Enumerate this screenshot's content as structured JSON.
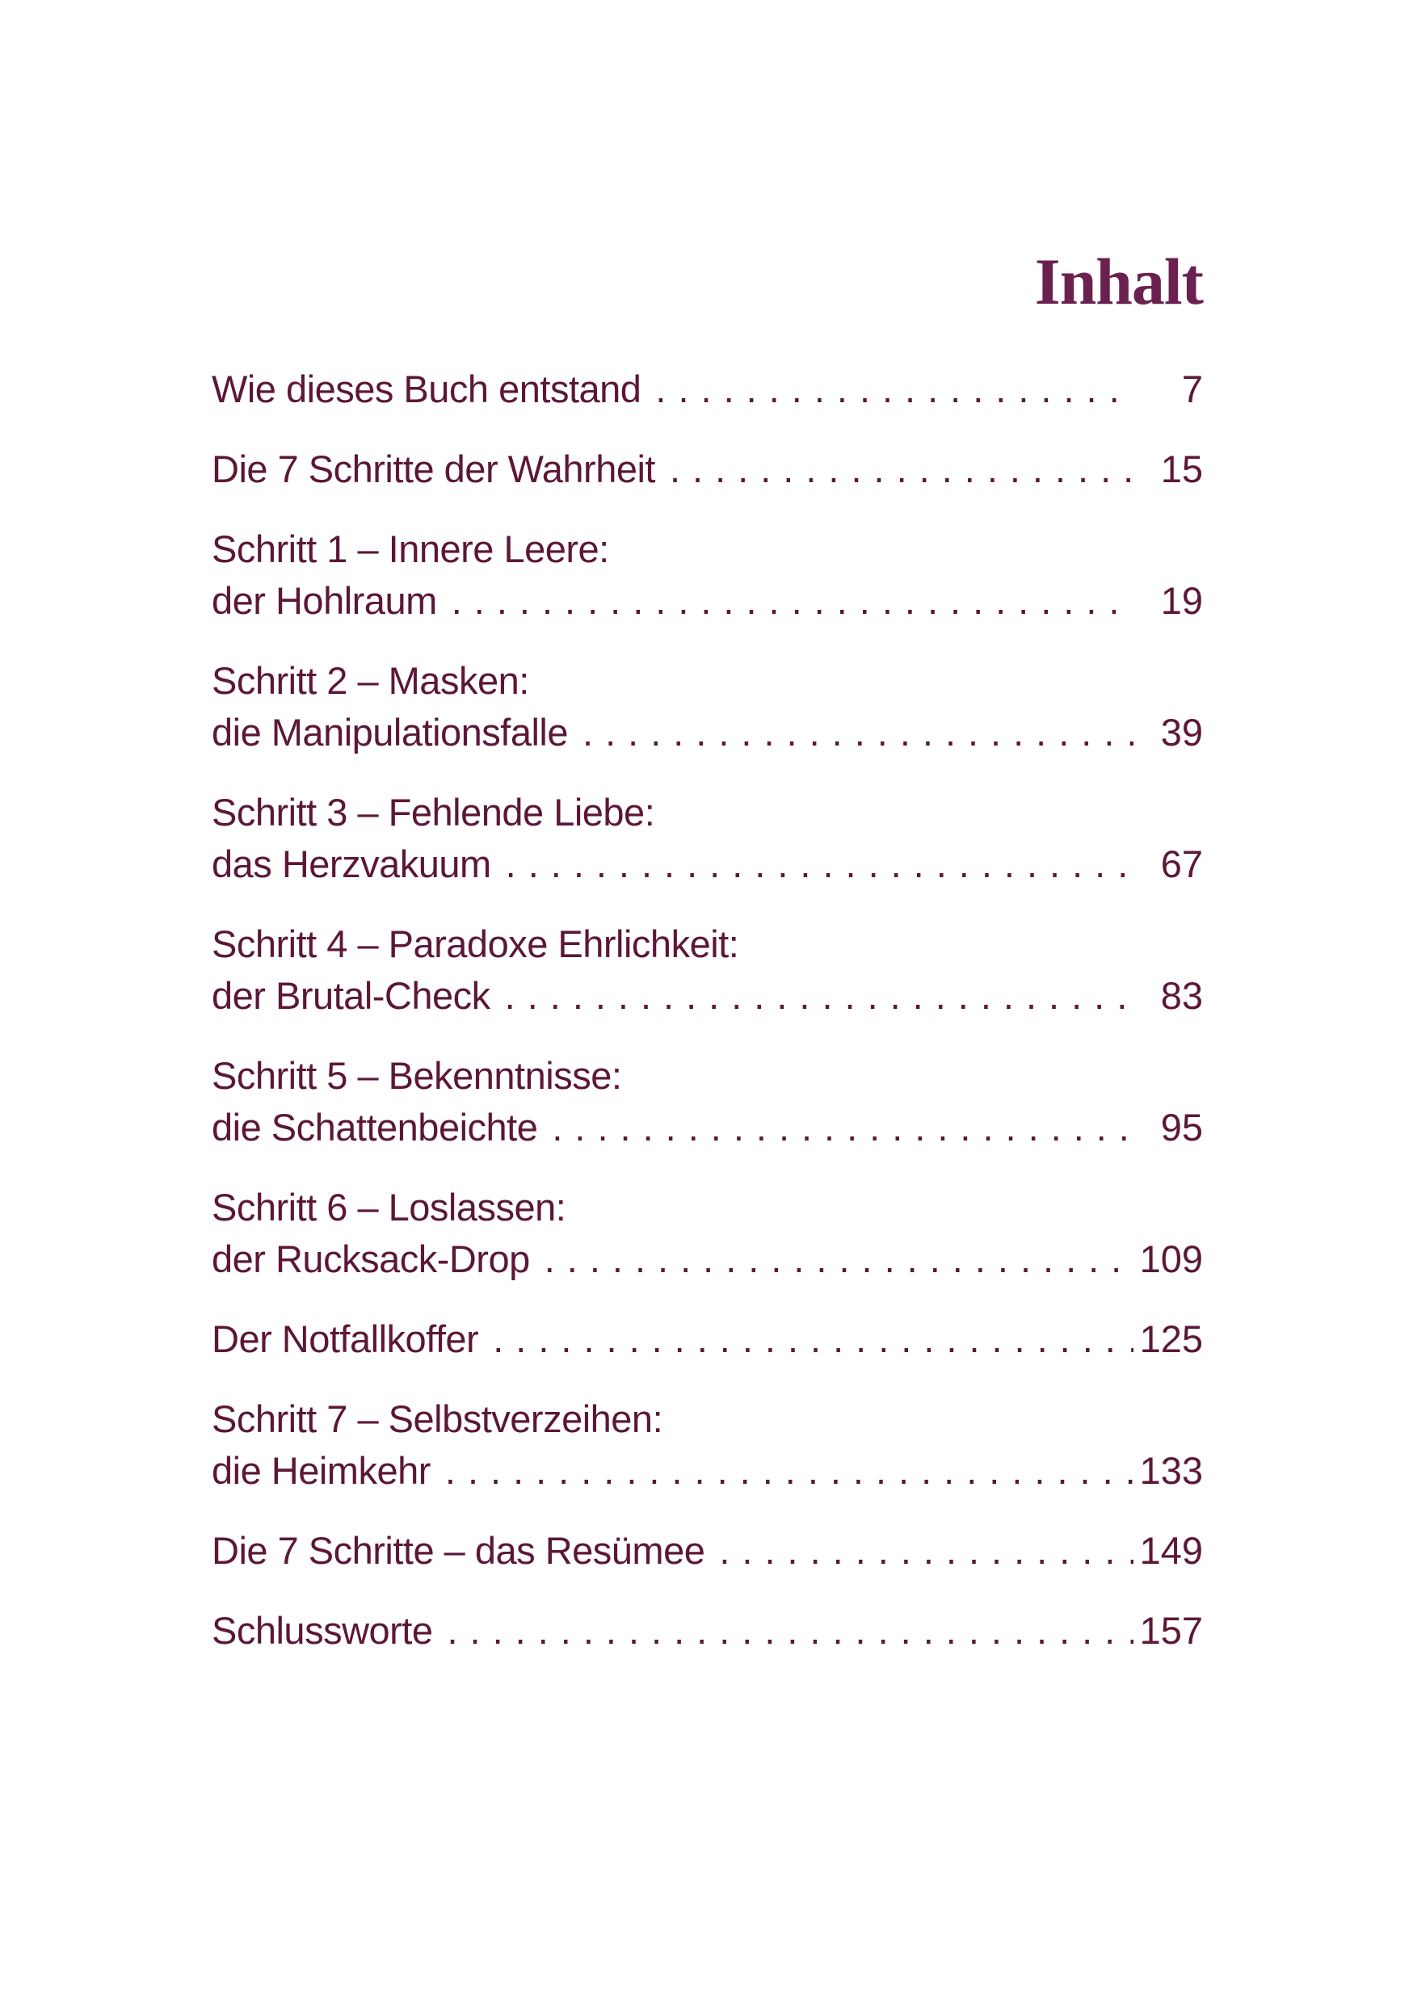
{
  "page": {
    "title": "Inhalt",
    "colors": {
      "background": "#FFFFFF",
      "title": "#6B2150",
      "text": "#5C1738"
    },
    "leader_dot": ".",
    "toc": {
      "entries": [
        {
          "heading": null,
          "label": "Wie dieses Buch entstand",
          "page": "7"
        },
        {
          "heading": null,
          "label": "Die 7 Schritte der Wahrheit",
          "page": "15"
        },
        {
          "heading": "Schritt 1 – Innere Leere:",
          "label": "der Hohlraum",
          "page": "19"
        },
        {
          "heading": "Schritt 2 – Masken:",
          "label": "die Manipulationsfalle",
          "page": "39"
        },
        {
          "heading": "Schritt 3 – Fehlende Liebe:",
          "label": "das Herzvakuum",
          "page": "67"
        },
        {
          "heading": "Schritt 4 – Paradoxe Ehrlichkeit:",
          "label": "der Brutal-Check",
          "page": "83"
        },
        {
          "heading": "Schritt 5 – Bekenntnisse:",
          "label": "die Schattenbeichte",
          "page": "95"
        },
        {
          "heading": "Schritt 6 – Loslassen:",
          "label": "der Rucksack-Drop",
          "page": "109"
        },
        {
          "heading": null,
          "label": "Der Notfallkoffer",
          "page": "125"
        },
        {
          "heading": "Schritt 7 – Selbstverzeihen:",
          "label": "die Heimkehr",
          "page": "133"
        },
        {
          "heading": null,
          "label": "Die 7 Schritte – das Resümee",
          "page": "149"
        },
        {
          "heading": null,
          "label": "Schlussworte",
          "page": "157"
        }
      ]
    }
  }
}
